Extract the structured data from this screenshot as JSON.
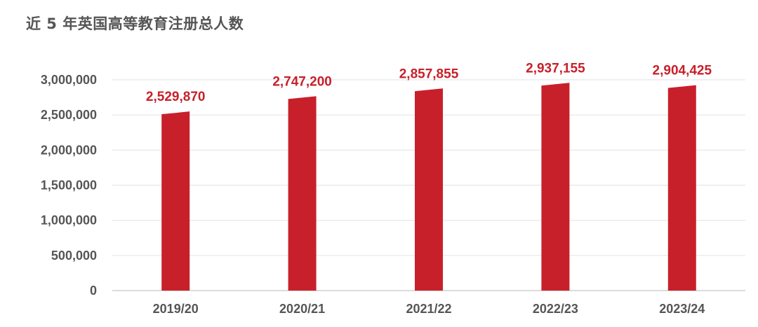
{
  "title": "近 5 年英国高等教育注册总人数",
  "chart_data": {
    "type": "bar",
    "categories": [
      "2019/20",
      "2020/21",
      "2021/22",
      "2022/23",
      "2023/24"
    ],
    "values": [
      2529870,
      2747200,
      2857855,
      2937155,
      2904425
    ],
    "value_labels": [
      "2,529,870",
      "2,747,200",
      "2,857,855",
      "2,937,155",
      "2,904,425"
    ],
    "title": "近 5 年英国高等教育注册总人数",
    "xlabel": "",
    "ylabel": "",
    "ylim": [
      0,
      3000000
    ],
    "yticks": [
      0,
      500000,
      1000000,
      1500000,
      2000000,
      2500000,
      3000000
    ],
    "ytick_labels": [
      "0",
      "500,000",
      "1,000,000",
      "1,500,000",
      "2,000,000",
      "2,500,000",
      "3,000,000"
    ],
    "grid": true,
    "legend": "none",
    "colors": {
      "bar": "#C8202A",
      "label": "#C8202A",
      "grid": "#E6E6E6",
      "axis": "#D0D0D0",
      "text": "#555555"
    }
  }
}
